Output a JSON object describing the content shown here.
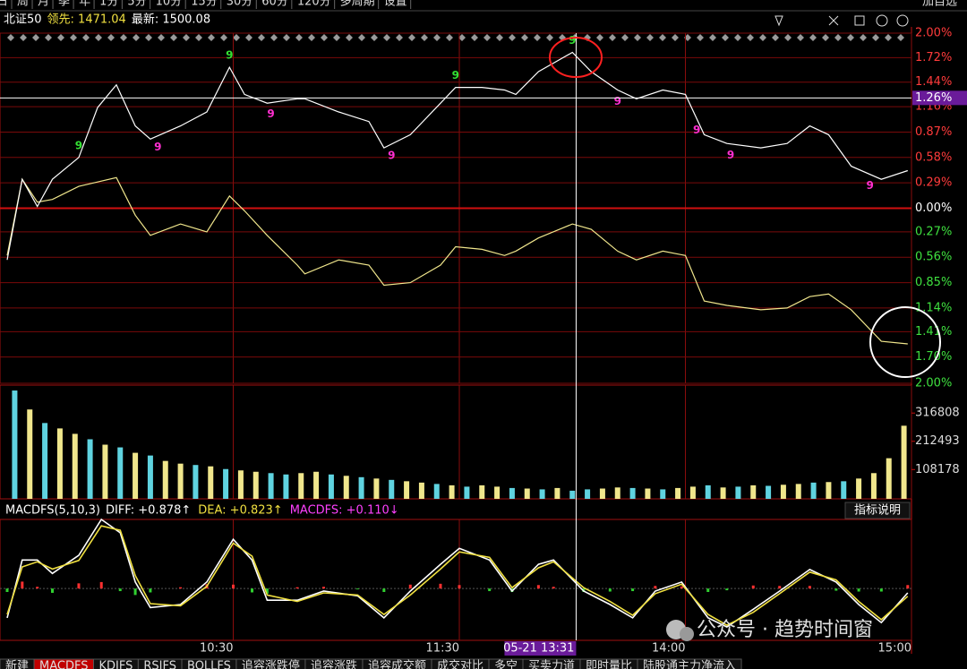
{
  "toolbar": {
    "tabs": [
      "日",
      "周",
      "月",
      "季",
      "年",
      "1分",
      "5分",
      "10分",
      "15分",
      "30分",
      "60分",
      "120分",
      "多周期",
      "设置"
    ],
    "right": [
      "加自选"
    ]
  },
  "info": [
    {
      "text": "北证50",
      "color": "#ffffff"
    },
    {
      "text": "领先: 1471.04",
      "color": "#f0e040"
    },
    {
      "text": "最新: 1500.08",
      "color": "#ffffff"
    }
  ],
  "chart_data": [
    {
      "type": "line",
      "ylim": [
        -2,
        2
      ],
      "up_color": "#ff3b3b",
      "down_color": "#3fe03f",
      "grid": true,
      "yticks": [
        {
          "value": 2,
          "label": "2.00%"
        },
        {
          "value": 1.72,
          "label": "1.72%"
        },
        {
          "value": 1.44,
          "label": "1.44%"
        },
        {
          "value": 1.16,
          "label": "1.16%"
        },
        {
          "value": 0.87,
          "label": "0.87%"
        },
        {
          "value": 0.58,
          "label": "0.58%"
        },
        {
          "value": 0.29,
          "label": "0.29%"
        },
        {
          "value": 0,
          "label": "0.00%"
        },
        {
          "value": -0.27,
          "label": "0.27%"
        },
        {
          "value": -0.56,
          "label": "0.56%"
        },
        {
          "value": -0.85,
          "label": "0.85%"
        },
        {
          "value": -1.14,
          "label": "1.14%"
        },
        {
          "value": -1.41,
          "label": "1.41%"
        },
        {
          "value": -1.7,
          "label": "1.70%"
        },
        {
          "value": -2,
          "label": "2.00%"
        }
      ],
      "x": [
        0,
        4,
        8,
        12,
        19,
        24,
        29,
        34,
        38,
        46,
        53,
        59,
        63,
        69,
        77,
        79,
        88,
        96,
        100,
        107,
        115,
        119,
        126,
        132,
        135,
        141,
        150,
        155,
        162,
        167,
        174,
        180,
        185,
        191,
        200,
        207,
        213,
        218,
        224,
        232,
        239
      ],
      "series": [
        {
          "color": "#ffffff",
          "values": [
            -0.59,
            0.33,
            0.02,
            0.33,
            0.58,
            1.15,
            1.41,
            0.94,
            0.79,
            0.94,
            1.1,
            1.61,
            1.3,
            1.2,
            1.25,
            1.25,
            1.1,
            0.99,
            0.69,
            0.84,
            1.2,
            1.38,
            1.38,
            1.35,
            1.3,
            1.56,
            1.78,
            1.56,
            1.35,
            1.25,
            1.35,
            1.3,
            0.84,
            0.74,
            0.69,
            0.74,
            0.94,
            0.84,
            0.48,
            0.33,
            0.43
          ]
        },
        {
          "color": "#f0e68c",
          "values": [
            -0.54,
            0.33,
            0.07,
            0.1,
            0.25,
            0.3,
            0.35,
            -0.08,
            -0.31,
            -0.18,
            -0.27,
            0.14,
            -0.03,
            -0.31,
            -0.65,
            -0.75,
            -0.59,
            -0.65,
            -0.88,
            -0.85,
            -0.65,
            -0.44,
            -0.47,
            -0.54,
            -0.49,
            -0.34,
            -0.18,
            -0.24,
            -0.49,
            -0.59,
            -0.49,
            -0.54,
            -1.06,
            -1.11,
            -1.16,
            -1.14,
            -1.01,
            -0.98,
            -1.16,
            -1.52,
            -1.55
          ]
        }
      ],
      "td_marks": [
        {
          "x": 19,
          "label": "9",
          "color": "#33e033"
        },
        {
          "x": 59,
          "label": "9",
          "color": "#33e033"
        },
        {
          "x": 119,
          "label": "9",
          "color": "#33e033"
        },
        {
          "x": 150,
          "label": "9",
          "color": "#33e033"
        },
        {
          "x": 40,
          "label": "9",
          "color": "#ff2fd0"
        },
        {
          "x": 70,
          "label": "9",
          "color": "#ff2fd0"
        },
        {
          "x": 102,
          "label": "9",
          "color": "#ff2fd0"
        },
        {
          "x": 162,
          "label": "9",
          "color": "#ff2fd0"
        },
        {
          "x": 183,
          "label": "9",
          "color": "#ff2fd0"
        },
        {
          "x": 192,
          "label": "9",
          "color": "#ff2fd0"
        },
        {
          "x": 229,
          "label": "9",
          "color": "#ff2fd0"
        }
      ],
      "cursor_y": {
        "value": 1.26,
        "label": "1.26%"
      }
    },
    {
      "type": "bar",
      "ylim": [
        0,
        420000
      ],
      "yticks": [
        108178,
        212493,
        316808
      ],
      "up_color": "#f0e68c",
      "down_color": "#5fd3e0",
      "x": [
        2,
        6,
        10,
        14,
        18,
        22,
        26,
        30,
        34,
        38,
        42,
        46,
        50,
        54,
        58,
        62,
        66,
        70,
        74,
        78,
        82,
        86,
        90,
        94,
        98,
        102,
        106,
        110,
        114,
        118,
        122,
        126,
        130,
        134,
        138,
        142,
        146,
        150,
        154,
        158,
        162,
        166,
        170,
        174,
        178,
        182,
        186,
        190,
        194,
        198,
        202,
        206,
        210,
        214,
        218,
        222,
        226,
        230,
        234,
        238
      ],
      "values": [
        400000,
        330000,
        280000,
        260000,
        240000,
        220000,
        200000,
        190000,
        170000,
        160000,
        140000,
        130000,
        125000,
        120000,
        110000,
        105000,
        100000,
        95000,
        90000,
        95000,
        100000,
        90000,
        85000,
        80000,
        75000,
        70000,
        65000,
        60000,
        55000,
        50000,
        45000,
        50000,
        45000,
        40000,
        38000,
        35000,
        40000,
        30000,
        35000,
        38000,
        42000,
        40000,
        38000,
        35000,
        40000,
        45000,
        50000,
        42000,
        45000,
        50000,
        48000,
        52000,
        55000,
        60000,
        62000,
        65000,
        75000,
        95000,
        150000,
        270000
      ],
      "up": [
        false,
        true,
        false,
        true,
        true,
        false,
        true,
        false,
        true,
        false,
        true,
        true,
        false,
        true,
        false,
        true,
        true,
        false,
        false,
        true,
        true,
        false,
        true,
        false,
        true,
        false,
        true,
        true,
        false,
        true,
        false,
        true,
        true,
        false,
        true,
        false,
        true,
        false,
        false,
        true,
        true,
        false,
        true,
        false,
        true,
        true,
        false,
        true,
        false,
        true,
        false,
        true,
        true,
        false,
        true,
        false,
        true,
        true,
        true,
        true
      ]
    },
    {
      "type": "macd",
      "title": "MACDFS(5,10,3)",
      "ylim": [
        -1.2,
        1.6
      ],
      "pos_color": "#ff3030",
      "neg_color": "#30d030",
      "indicators": [
        {
          "label": "DIFF: +0.878↑",
          "color": "#ffffff"
        },
        {
          "label": "DEA: +0.823↑",
          "color": "#f0e040"
        },
        {
          "label": "MACDFS: +0.110↓",
          "color": "#ff40ff"
        }
      ],
      "help": "指标说明",
      "x": [
        0,
        4,
        8,
        12,
        19,
        25,
        30,
        34,
        38,
        46,
        53,
        60,
        65,
        69,
        77,
        84,
        93,
        100,
        107,
        115,
        120,
        128,
        134,
        141,
        145,
        153,
        160,
        166,
        172,
        179,
        186,
        191,
        198,
        205,
        213,
        220,
        226,
        232,
        239
      ],
      "series": [
        {
          "color": "#ffffff",
          "values": [
            -0.68,
            0.66,
            0.66,
            0.35,
            0.77,
            1.6,
            1.29,
            0.15,
            -0.44,
            -0.37,
            0.15,
            1.14,
            0.66,
            -0.27,
            -0.27,
            -0.06,
            -0.17,
            -0.68,
            -0.06,
            0.56,
            0.93,
            0.66,
            -0.06,
            0.56,
            0.66,
            -0.06,
            -0.37,
            -0.68,
            -0.06,
            0.15,
            -0.68,
            -0.89,
            -0.48,
            -0.06,
            0.44,
            0.15,
            -0.37,
            -0.79,
            -0.1
          ]
        },
        {
          "color": "#f0e040",
          "values": [
            -0.6,
            0.5,
            0.62,
            0.45,
            0.65,
            1.45,
            1.35,
            0.3,
            -0.35,
            -0.4,
            0.05,
            1.05,
            0.75,
            -0.15,
            -0.3,
            -0.1,
            -0.15,
            -0.6,
            -0.15,
            0.45,
            0.85,
            0.72,
            0.02,
            0.48,
            0.62,
            0.02,
            -0.3,
            -0.62,
            -0.12,
            0.1,
            -0.6,
            -0.85,
            -0.55,
            -0.12,
            0.38,
            0.2,
            -0.3,
            -0.72,
            -0.18
          ]
        }
      ],
      "histogram": [
        -0.08,
        0.16,
        0.04,
        -0.1,
        0.12,
        0.15,
        -0.06,
        -0.15,
        -0.09,
        0.03,
        0.1,
        0.09,
        -0.09,
        -0.12,
        0.03,
        0.04,
        -0.02,
        -0.08,
        0.09,
        0.11,
        0.08,
        -0.06,
        -0.08,
        0.08,
        0.04,
        -0.08,
        -0.07,
        -0.06,
        0.06,
        0.05,
        -0.08,
        -0.04,
        0.07,
        0.06,
        0.06,
        -0.05,
        -0.07,
        -0.07,
        0.08
      ],
      "xlim": [
        0,
        240
      ],
      "xticks": [
        {
          "value": 60,
          "label": "10:30"
        },
        {
          "value": 120,
          "label": "11:30"
        },
        {
          "value": 180,
          "label": "14:00"
        },
        {
          "value": 240,
          "label": "15:00"
        }
      ],
      "cursor_x": {
        "value": 151,
        "label": "05-21 13:31"
      }
    }
  ],
  "bottom_tabs": [
    "新建",
    "MACDFS",
    "KDJFS",
    "RSIFS",
    "BOLLFS",
    "追容涨跌停",
    "追容涨跌",
    "追容成交额",
    "成交对比",
    "多空",
    "买卖力道",
    "即时量比",
    "陆股通主力净流入"
  ],
  "watermark": "公众号 · 趋势时间窗"
}
